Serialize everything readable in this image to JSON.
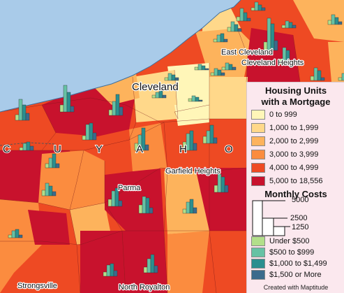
{
  "map": {
    "water_color": "#a9cbe9",
    "class_colors": [
      "#fff6b8",
      "#ffd88a",
      "#fdb35c",
      "#fb8c3f",
      "#ee4a23",
      "#c8122d"
    ],
    "bar_colors": [
      "#b2df8a",
      "#66c2a4",
      "#2a8f8f",
      "#3b6b8c"
    ],
    "places": [
      "Cleveland",
      "East Cleveland",
      "Cleveland Heights",
      "Garfield Heights",
      "Parma",
      "Strongsville",
      "North Royalton"
    ],
    "county_letters": [
      "C",
      "U",
      "Y",
      "A",
      "H",
      "O"
    ]
  },
  "legend": {
    "title_line1": "Housing Units",
    "title_line2": "with a Mortgage",
    "classes": [
      {
        "label": "0 to 999",
        "color": "#fff6b8"
      },
      {
        "label": "1,000 to 1,999",
        "color": "#ffd88a"
      },
      {
        "label": "2,000 to 2,999",
        "color": "#fdb35c"
      },
      {
        "label": "3,000 to 3,999",
        "color": "#fb8c3f"
      },
      {
        "label": "4,000 to 4,999",
        "color": "#ee4a23"
      },
      {
        "label": "5,000 to 18,556",
        "color": "#c8122d"
      }
    ],
    "costs_title": "Monthly Costs",
    "scale": [
      5000,
      2500,
      1250
    ],
    "scale_labels": [
      "5000",
      "2500",
      "1250"
    ],
    "bars": [
      {
        "label": "Under $500",
        "color": "#b2df8a"
      },
      {
        "label": "$500 to $999",
        "color": "#66c2a4"
      },
      {
        "label": "$1,000 to $1,499",
        "color": "#2a8f8f"
      },
      {
        "label": "$1,500 or More",
        "color": "#3b6b8c"
      }
    ],
    "credit": "Created with Maptitude"
  }
}
